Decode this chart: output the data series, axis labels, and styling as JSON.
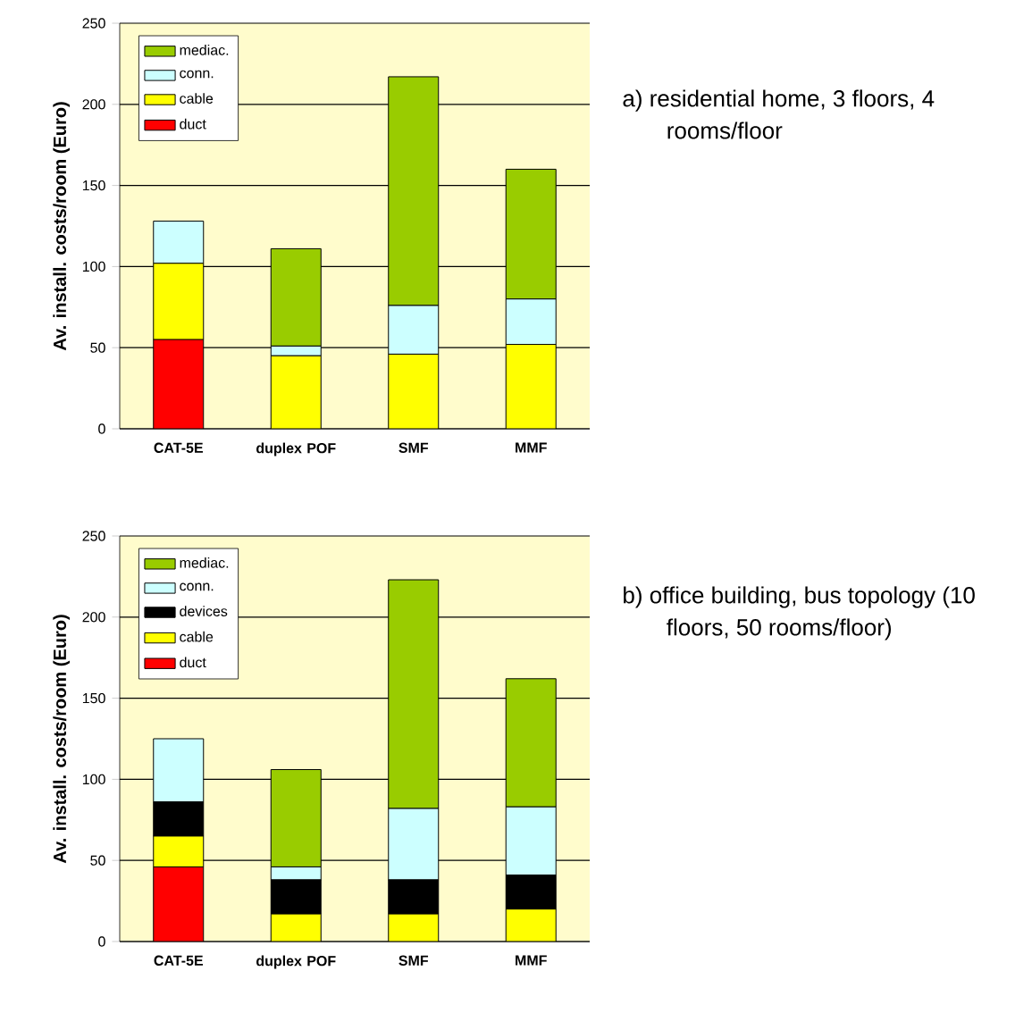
{
  "chart_data": [
    {
      "type": "bar",
      "stacked": true,
      "categories": [
        "CAT-5E",
        "duplex POF",
        "SMF",
        "MMF"
      ],
      "ylabel": "Av. install. costs/room (Euro)",
      "ylim": [
        0,
        250
      ],
      "yticks": [
        0,
        50,
        100,
        150,
        200,
        250
      ],
      "grid": "y",
      "legend": "top left",
      "series": [
        {
          "name": "duct",
          "color": "#ff0000",
          "values": [
            55,
            null,
            null,
            null
          ]
        },
        {
          "name": "cable",
          "color": "#ffff00",
          "values": [
            47,
            45,
            46,
            52
          ]
        },
        {
          "name": "conn.",
          "color": "#ccffff",
          "values": [
            26,
            6,
            30,
            28
          ]
        },
        {
          "name": "mediac.",
          "color": "#99cc00",
          "values": [
            null,
            60,
            141,
            80
          ]
        }
      ],
      "annotations": [
        "a) residential home, 3 floors, 4 rooms/floor"
      ]
    },
    {
      "type": "bar",
      "stacked": true,
      "categories": [
        "CAT-5E",
        "duplex POF",
        "SMF",
        "MMF"
      ],
      "ylabel": "Av. install. costs/room (Euro)",
      "ylim": [
        0,
        250
      ],
      "yticks": [
        0,
        50,
        100,
        150,
        200,
        250
      ],
      "grid": "y",
      "legend": "top left",
      "series": [
        {
          "name": "duct",
          "color": "#ff0000",
          "values": [
            46,
            null,
            null,
            null
          ]
        },
        {
          "name": "cable",
          "color": "#ffff00",
          "values": [
            19,
            17,
            17,
            20
          ]
        },
        {
          "name": "devices",
          "color": "#000000",
          "values": [
            21,
            21,
            21,
            21
          ]
        },
        {
          "name": "conn.",
          "color": "#ccffff",
          "values": [
            39,
            8,
            44,
            42
          ]
        },
        {
          "name": "mediac.",
          "color": "#99cc00",
          "values": [
            null,
            60,
            141,
            79
          ]
        }
      ],
      "annotations": [
        "b) office building, bus topology (10 floors, 50 rooms/floor)"
      ]
    }
  ]
}
